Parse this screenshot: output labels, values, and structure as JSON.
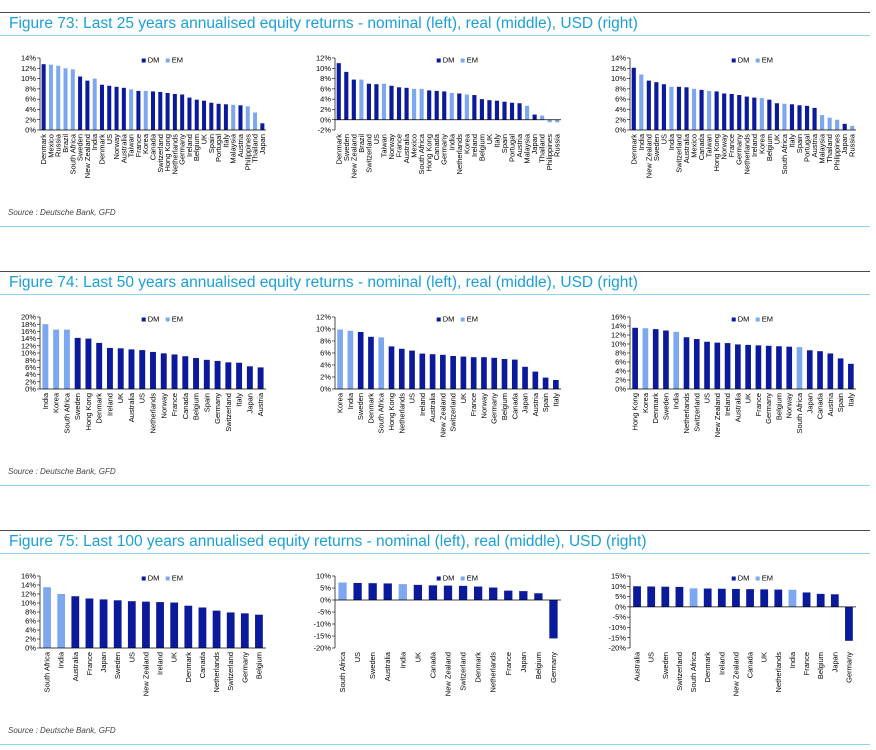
{
  "figures": [
    {
      "title": "Figure 73: Last 25 years annualised equity returns - nominal (left), real (middle), USD (right)",
      "source": "Source : Deutsche Bank, GFD"
    },
    {
      "title": "Figure 74: Last 50 years annualised equity returns - nominal (left), real (middle), USD (right)",
      "source": "Source : Deutsche Bank, GFD"
    },
    {
      "title": "Figure 75: Last 100 years annualised equity returns - nominal (left), real (middle), USD (right)",
      "source": "Source : Deutsche Bank, GFD"
    }
  ],
  "colors": {
    "DM": "#0a1a9a",
    "EM": "#7da7ee",
    "axis": "#000000",
    "title": "#1aa0d8"
  },
  "chart_data": [
    {
      "id": "f73-nominal",
      "type": "bar",
      "legend": [
        "DM",
        "EM"
      ],
      "ylim": [
        0,
        14
      ],
      "yticks": [
        0,
        2,
        4,
        6,
        8,
        10,
        12,
        14
      ],
      "ytick_suffix": "%",
      "categories": [
        "Denmark",
        "Mexico",
        "Russia",
        "Brazil",
        "South Africa",
        "Sweden",
        "New Zealand",
        "India",
        "Denmark",
        "US",
        "Norway",
        "Australia",
        "Taiwan",
        "France",
        "Korea",
        "Canada",
        "Switzerland",
        "Hong Kong",
        "Netherlands",
        "Germany",
        "Ireland",
        "Belgium",
        "UK",
        "Spain",
        "Portugal",
        "Italy",
        "Malaysia",
        "Austria",
        "Philippines",
        "Thailand",
        "Japan"
      ],
      "group": [
        "DM",
        "EM",
        "EM",
        "EM",
        "EM",
        "DM",
        "DM",
        "EM",
        "DM",
        "DM",
        "DM",
        "DM",
        "EM",
        "DM",
        "EM",
        "DM",
        "DM",
        "DM",
        "DM",
        "DM",
        "DM",
        "DM",
        "DM",
        "DM",
        "DM",
        "DM",
        "EM",
        "DM",
        "EM",
        "EM",
        "DM"
      ],
      "values": [
        12.8,
        12.7,
        12.5,
        12.0,
        11.8,
        10.4,
        9.6,
        10.0,
        8.8,
        8.6,
        8.4,
        8.2,
        7.9,
        7.6,
        7.6,
        7.5,
        7.4,
        7.2,
        7.0,
        6.9,
        6.3,
        5.9,
        5.7,
        5.3,
        5.1,
        5.0,
        4.9,
        4.8,
        4.6,
        3.4,
        1.3
      ]
    },
    {
      "id": "f73-real",
      "type": "bar",
      "legend": [
        "DM",
        "EM"
      ],
      "ylim": [
        -2,
        12
      ],
      "yticks": [
        -2,
        0,
        2,
        4,
        6,
        8,
        10,
        12
      ],
      "ytick_suffix": "%",
      "categories": [
        "Denmark",
        "Sweden",
        "New Zealand",
        "Brazil",
        "Switzerland",
        "US",
        "Taiwan",
        "Norway",
        "France",
        "Australia",
        "Mexico",
        "South Africa",
        "Hong Kong",
        "Canada",
        "Germany",
        "India",
        "Netherlands",
        "Korea",
        "Ireland",
        "Belgium",
        "UK",
        "Italy",
        "Spain",
        "Portugal",
        "Austria",
        "Malaysia",
        "Japan",
        "Thailand",
        "Philippines",
        "Russia"
      ],
      "group": [
        "DM",
        "DM",
        "DM",
        "EM",
        "DM",
        "DM",
        "EM",
        "DM",
        "DM",
        "DM",
        "EM",
        "EM",
        "DM",
        "DM",
        "DM",
        "EM",
        "DM",
        "EM",
        "DM",
        "DM",
        "DM",
        "DM",
        "DM",
        "DM",
        "DM",
        "EM",
        "DM",
        "EM",
        "EM",
        "EM"
      ],
      "values": [
        11.0,
        9.3,
        7.8,
        7.8,
        7.0,
        6.9,
        7.0,
        6.6,
        6.3,
        6.2,
        6.0,
        6.0,
        5.7,
        5.6,
        5.5,
        5.2,
        5.1,
        4.9,
        4.8,
        4.0,
        3.8,
        3.7,
        3.5,
        3.3,
        3.2,
        2.7,
        1.0,
        0.8,
        -0.5,
        -0.5
      ]
    },
    {
      "id": "f73-usd",
      "type": "bar",
      "legend": [
        "DM",
        "EM"
      ],
      "ylim": [
        0,
        14
      ],
      "yticks": [
        0,
        2,
        4,
        6,
        8,
        10,
        12,
        14
      ],
      "ytick_suffix": "%",
      "categories": [
        "Denmark",
        "India",
        "New Zealand",
        "Sweden",
        "US",
        "India",
        "Switzerland",
        "Australia",
        "Mexico",
        "Canada",
        "Taiwan",
        "Hong Kong",
        "Norway",
        "France",
        "Germany",
        "Netherlands",
        "Ireland",
        "Korea",
        "Belgium",
        "UK",
        "South Africa",
        "Italy",
        "Spain",
        "Portugal",
        "Austria",
        "Malaysia",
        "Thailand",
        "Philippines",
        "Japan",
        "Russia"
      ],
      "group": [
        "DM",
        "EM",
        "DM",
        "DM",
        "DM",
        "EM",
        "DM",
        "DM",
        "EM",
        "DM",
        "EM",
        "DM",
        "DM",
        "DM",
        "DM",
        "DM",
        "DM",
        "EM",
        "DM",
        "DM",
        "EM",
        "DM",
        "DM",
        "DM",
        "DM",
        "EM",
        "EM",
        "EM",
        "DM",
        "EM"
      ],
      "values": [
        12.1,
        10.8,
        9.6,
        9.3,
        8.9,
        8.4,
        8.4,
        8.3,
        8.0,
        7.8,
        7.6,
        7.5,
        7.1,
        7.0,
        6.8,
        6.5,
        6.3,
        6.2,
        5.9,
        5.2,
        5.1,
        5.0,
        4.8,
        4.7,
        4.3,
        2.9,
        2.4,
        2.0,
        1.2,
        0.8
      ]
    },
    {
      "id": "f74-nominal",
      "type": "bar",
      "legend": [
        "DM",
        "EM"
      ],
      "ylim": [
        0,
        20
      ],
      "yticks": [
        0,
        2,
        4,
        6,
        8,
        10,
        12,
        14,
        16,
        18,
        20
      ],
      "ytick_suffix": "%",
      "categories": [
        "India",
        "Korea",
        "South Africa",
        "Sweden",
        "Hong Kong",
        "Denmark",
        "Ireland",
        "UK",
        "Australia",
        "US",
        "Netherlands",
        "Norway",
        "France",
        "Canada",
        "Belgium",
        "Spain",
        "Germany",
        "Switzerland",
        "Italy",
        "Japan",
        "Austria"
      ],
      "group": [
        "EM",
        "EM",
        "EM",
        "DM",
        "DM",
        "DM",
        "DM",
        "DM",
        "DM",
        "DM",
        "DM",
        "DM",
        "DM",
        "DM",
        "DM",
        "DM",
        "DM",
        "DM",
        "DM",
        "DM",
        "DM"
      ],
      "values": [
        18.0,
        16.5,
        16.5,
        14.2,
        14.0,
        12.8,
        11.4,
        11.3,
        11.0,
        10.8,
        10.3,
        9.9,
        9.6,
        9.1,
        8.6,
        8.1,
        7.8,
        7.4,
        7.3,
        6.3,
        6.0
      ]
    },
    {
      "id": "f74-real",
      "type": "bar",
      "legend": [
        "DM",
        "EM"
      ],
      "ylim": [
        0,
        12
      ],
      "yticks": [
        0,
        2,
        4,
        6,
        8,
        10,
        12
      ],
      "ytick_suffix": "%",
      "categories": [
        "Korea",
        "India",
        "Sweden",
        "Denmark",
        "South Africa",
        "Hong Kong",
        "Netherlands",
        "US",
        "Ireland",
        "Australia",
        "New Zealand",
        "Switzerland",
        "UK",
        "France",
        "Norway",
        "Germany",
        "Belgium",
        "Canada",
        "Japan",
        "Austria",
        "Spain",
        "Italy"
      ],
      "group": [
        "EM",
        "EM",
        "DM",
        "DM",
        "EM",
        "DM",
        "DM",
        "DM",
        "DM",
        "DM",
        "DM",
        "DM",
        "DM",
        "DM",
        "DM",
        "DM",
        "DM",
        "DM",
        "DM",
        "DM",
        "DM",
        "DM"
      ],
      "values": [
        9.9,
        9.7,
        9.5,
        8.7,
        8.6,
        7.1,
        6.7,
        6.4,
        5.9,
        5.8,
        5.7,
        5.5,
        5.4,
        5.3,
        5.3,
        5.2,
        5.0,
        4.9,
        3.7,
        2.9,
        1.9,
        1.5
      ]
    },
    {
      "id": "f74-usd",
      "type": "bar",
      "legend": [
        "DM",
        "EM"
      ],
      "ylim": [
        0,
        16
      ],
      "yticks": [
        0,
        2,
        4,
        6,
        8,
        10,
        12,
        14,
        16
      ],
      "ytick_suffix": "%",
      "categories": [
        "Hong Kong",
        "Korea",
        "Denmark",
        "Sweden",
        "India",
        "Netherlands",
        "Switzerland",
        "US",
        "New Zealand",
        "Ireland",
        "Australia",
        "UK",
        "France",
        "Germany",
        "Belgium",
        "Norway",
        "South Africa",
        "Japan",
        "Canada",
        "Austria",
        "Spain",
        "Italy"
      ],
      "group": [
        "DM",
        "EM",
        "DM",
        "DM",
        "EM",
        "DM",
        "DM",
        "DM",
        "DM",
        "DM",
        "DM",
        "DM",
        "DM",
        "DM",
        "DM",
        "DM",
        "EM",
        "DM",
        "DM",
        "DM",
        "DM",
        "DM"
      ],
      "values": [
        13.6,
        13.5,
        13.3,
        13.0,
        12.7,
        11.5,
        11.1,
        10.5,
        10.3,
        10.2,
        9.9,
        9.8,
        9.7,
        9.6,
        9.5,
        9.4,
        9.3,
        8.6,
        8.4,
        7.9,
        6.8,
        5.6
      ]
    },
    {
      "id": "f75-nominal",
      "type": "bar",
      "legend": [
        "DM",
        "EM"
      ],
      "ylim": [
        0,
        16
      ],
      "yticks": [
        0,
        2,
        4,
        6,
        8,
        10,
        12,
        14,
        16
      ],
      "ytick_suffix": "%",
      "categories": [
        "South Africa",
        "India",
        "Australia",
        "France",
        "Japan",
        "Sweden",
        "US",
        "New Zealand",
        "Ireland",
        "UK",
        "Denmark",
        "Canada",
        "Netherlands",
        "Switzerland",
        "Germany",
        "Belgium"
      ],
      "group": [
        "EM",
        "EM",
        "DM",
        "DM",
        "DM",
        "DM",
        "DM",
        "DM",
        "DM",
        "DM",
        "DM",
        "DM",
        "DM",
        "DM",
        "DM",
        "DM"
      ],
      "values": [
        13.5,
        12.0,
        11.5,
        11.0,
        10.8,
        10.6,
        10.4,
        10.3,
        10.2,
        10.1,
        9.4,
        9.0,
        8.3,
        7.9,
        7.7,
        7.4
      ]
    },
    {
      "id": "f75-real",
      "type": "bar",
      "legend": [
        "DM",
        "EM"
      ],
      "ylim": [
        -20,
        10
      ],
      "yticks": [
        -20,
        -15,
        -10,
        -5,
        0,
        5,
        10
      ],
      "ytick_suffix": "%",
      "categories": [
        "South Africa",
        "US",
        "Sweden",
        "Australia",
        "India",
        "UK",
        "Canada",
        "New Zealand",
        "Switzerland",
        "Denmark",
        "Netherlands",
        "France",
        "Japan",
        "Belgium",
        "Germany"
      ],
      "group": [
        "EM",
        "DM",
        "DM",
        "DM",
        "EM",
        "DM",
        "DM",
        "DM",
        "DM",
        "DM",
        "DM",
        "DM",
        "DM",
        "DM",
        "DM"
      ],
      "values": [
        7.3,
        7.1,
        7.0,
        6.9,
        6.6,
        6.3,
        6.1,
        6.0,
        5.9,
        5.6,
        5.2,
        3.9,
        3.7,
        2.8,
        -16.0
      ]
    },
    {
      "id": "f75-usd",
      "type": "bar",
      "legend": [
        "DM",
        "EM"
      ],
      "ylim": [
        -20,
        15
      ],
      "yticks": [
        -20,
        -15,
        -10,
        -5,
        0,
        5,
        10,
        15
      ],
      "ytick_suffix": "%",
      "categories": [
        "Australia",
        "US",
        "Sweden",
        "Switzerland",
        "South Africa",
        "Denmark",
        "Ireland",
        "New Zealand",
        "Canada",
        "UK",
        "Netherlands",
        "India",
        "France",
        "Belgium",
        "Japan",
        "Germany"
      ],
      "group": [
        "DM",
        "DM",
        "DM",
        "DM",
        "EM",
        "DM",
        "DM",
        "DM",
        "DM",
        "DM",
        "DM",
        "EM",
        "DM",
        "DM",
        "DM",
        "DM"
      ],
      "values": [
        10.0,
        9.9,
        9.8,
        9.7,
        9.0,
        8.9,
        8.8,
        8.7,
        8.6,
        8.5,
        8.4,
        8.3,
        7.0,
        6.3,
        6.1,
        -16.5
      ]
    }
  ]
}
